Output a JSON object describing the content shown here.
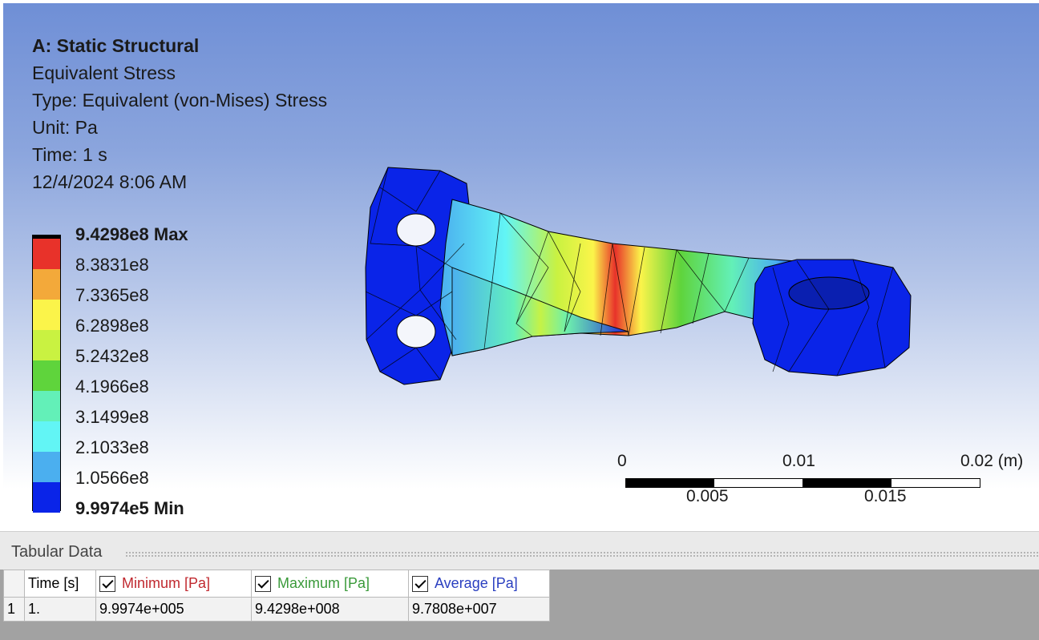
{
  "info": {
    "title": "A: Static Structural",
    "result": "Equivalent Stress",
    "type": "Type: Equivalent (von-Mises) Stress",
    "unit": "Unit: Pa",
    "time": "Time: 1 s",
    "datetime": "12/4/2024 8:06 AM"
  },
  "legend": {
    "labels": [
      "9.4298e8 Max",
      "8.3831e8",
      "7.3365e8",
      "6.2898e8",
      "5.2432e8",
      "4.1966e8",
      "3.1499e8",
      "2.1033e8",
      "1.0566e8",
      "9.9974e5 Min"
    ],
    "colors": [
      "#e8322a",
      "#f3a93a",
      "#fbf44a",
      "#c9f241",
      "#5fd43c",
      "#63f0b8",
      "#62f5f5",
      "#4bafef",
      "#0a24e8"
    ]
  },
  "scale": {
    "top_labels": [
      "0",
      "0.01",
      "0.02 (m)"
    ],
    "bottom_labels": [
      "0.005",
      "0.015"
    ]
  },
  "tabular": {
    "title": "Tabular Data",
    "headers": {
      "time": "Time [s]",
      "min": "Minimum [Pa]",
      "max": "Maximum [Pa]",
      "avg": "Average [Pa]"
    },
    "rows": [
      {
        "index": "1",
        "time": "1.",
        "min": "9.9974e+005",
        "max": "9.4298e+008",
        "avg": "9.7808e+007"
      }
    ]
  }
}
